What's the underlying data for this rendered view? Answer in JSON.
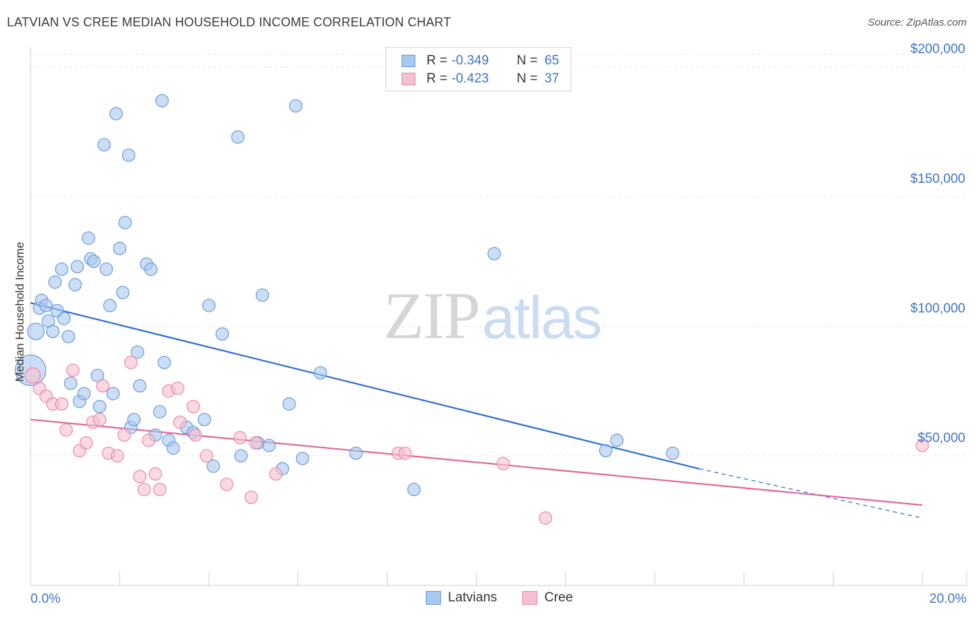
{
  "header": {
    "title": "LATVIAN VS CREE MEDIAN HOUSEHOLD INCOME CORRELATION CHART",
    "source": "Source: ZipAtlas.com"
  },
  "watermark": {
    "zip": "ZIP",
    "atlas": "atlas"
  },
  "legend": {
    "rows": [
      {
        "r_label": "R =",
        "r_value": "-0.349",
        "n_label": "N =",
        "n_value": "65"
      },
      {
        "r_label": "R =",
        "r_value": "-0.423",
        "n_label": "N =",
        "n_value": "37"
      }
    ],
    "bottom": [
      {
        "label": "Latvians"
      },
      {
        "label": "Cree"
      }
    ]
  },
  "colors": {
    "latvian_fill": "#a9c8f0",
    "latvian_stroke": "#6b9bd8",
    "latvian_line": "#2b6fd0",
    "cree_fill": "#f6c0d0",
    "cree_stroke": "#e68aa8",
    "cree_line": "#e0689a",
    "tick_label": "#3f74c8",
    "grid": "#e3e3e3"
  },
  "chart_data": {
    "type": "scatter",
    "title": "LATVIAN VS CREE MEDIAN HOUSEHOLD INCOME CORRELATION CHART",
    "xlabel": "",
    "ylabel": "Median Household Income",
    "xlim": [
      0,
      20
    ],
    "ylim": [
      0,
      205000
    ],
    "x_tick_labels": [
      {
        "value": 0,
        "label": "0.0%"
      },
      {
        "value": 20,
        "label": "20.0%"
      }
    ],
    "y_ticks": [
      {
        "value": 50000,
        "label": "$50,000"
      },
      {
        "value": 100000,
        "label": "$100,000"
      },
      {
        "value": 150000,
        "label": "$150,000"
      },
      {
        "value": 200000,
        "label": "$200,000"
      }
    ],
    "grid": "horizontal-dashed",
    "series": [
      {
        "name": "Latvians",
        "points": [
          [
            0.0,
            83000
          ],
          [
            0.12,
            98000
          ],
          [
            0.2,
            107000
          ],
          [
            0.25,
            110000
          ],
          [
            0.35,
            108000
          ],
          [
            0.4,
            102000
          ],
          [
            0.5,
            98000
          ],
          [
            0.55,
            117000
          ],
          [
            0.6,
            106000
          ],
          [
            0.7,
            122000
          ],
          [
            0.75,
            103000
          ],
          [
            0.85,
            96000
          ],
          [
            0.9,
            78000
          ],
          [
            1.0,
            116000
          ],
          [
            1.05,
            123000
          ],
          [
            1.1,
            71000
          ],
          [
            1.2,
            74000
          ],
          [
            1.3,
            134000
          ],
          [
            1.35,
            126000
          ],
          [
            1.42,
            125000
          ],
          [
            1.5,
            81000
          ],
          [
            1.55,
            69000
          ],
          [
            1.65,
            170000
          ],
          [
            1.7,
            122000
          ],
          [
            1.78,
            108000
          ],
          [
            1.85,
            74000
          ],
          [
            1.92,
            182000
          ],
          [
            2.0,
            130000
          ],
          [
            2.07,
            113000
          ],
          [
            2.12,
            140000
          ],
          [
            2.2,
            166000
          ],
          [
            2.25,
            61000
          ],
          [
            2.32,
            64000
          ],
          [
            2.4,
            90000
          ],
          [
            2.45,
            77000
          ],
          [
            2.6,
            124000
          ],
          [
            2.7,
            122000
          ],
          [
            2.8,
            58000
          ],
          [
            2.9,
            67000
          ],
          [
            2.95,
            187000
          ],
          [
            3.0,
            86000
          ],
          [
            3.1,
            56000
          ],
          [
            3.2,
            53000
          ],
          [
            3.5,
            61000
          ],
          [
            3.65,
            59000
          ],
          [
            3.9,
            64000
          ],
          [
            4.0,
            108000
          ],
          [
            4.1,
            46000
          ],
          [
            4.3,
            97000
          ],
          [
            4.65,
            173000
          ],
          [
            4.72,
            50000
          ],
          [
            5.1,
            55000
          ],
          [
            5.2,
            112000
          ],
          [
            5.35,
            54000
          ],
          [
            5.65,
            45000
          ],
          [
            5.8,
            70000
          ],
          [
            5.95,
            185000
          ],
          [
            6.1,
            49000
          ],
          [
            6.5,
            82000
          ],
          [
            7.3,
            51000
          ],
          [
            8.6,
            37000
          ],
          [
            10.4,
            128000
          ],
          [
            12.9,
            52000
          ],
          [
            13.15,
            56000
          ],
          [
            14.4,
            51000
          ]
        ]
      },
      {
        "name": "Cree",
        "points": [
          [
            0.05,
            81000
          ],
          [
            0.2,
            76000
          ],
          [
            0.35,
            73000
          ],
          [
            0.5,
            70000
          ],
          [
            0.7,
            70000
          ],
          [
            0.8,
            60000
          ],
          [
            0.95,
            83000
          ],
          [
            1.1,
            52000
          ],
          [
            1.25,
            55000
          ],
          [
            1.4,
            63000
          ],
          [
            1.55,
            64000
          ],
          [
            1.62,
            77000
          ],
          [
            1.75,
            51000
          ],
          [
            1.95,
            50000
          ],
          [
            2.1,
            58000
          ],
          [
            2.25,
            86000
          ],
          [
            2.45,
            42000
          ],
          [
            2.55,
            37000
          ],
          [
            2.65,
            56000
          ],
          [
            2.8,
            43000
          ],
          [
            2.9,
            37000
          ],
          [
            3.1,
            75000
          ],
          [
            3.3,
            76000
          ],
          [
            3.35,
            63000
          ],
          [
            3.65,
            69000
          ],
          [
            3.7,
            58000
          ],
          [
            3.95,
            50000
          ],
          [
            4.4,
            39000
          ],
          [
            4.7,
            57000
          ],
          [
            4.95,
            34000
          ],
          [
            5.05,
            55000
          ],
          [
            5.5,
            43000
          ],
          [
            8.25,
            51000
          ],
          [
            8.4,
            51000
          ],
          [
            10.6,
            47000
          ],
          [
            11.55,
            26000
          ],
          [
            20.0,
            54000
          ]
        ]
      }
    ],
    "trendlines": [
      {
        "series": "Latvians",
        "x": [
          0,
          15.0
        ],
        "y": [
          109000,
          45000
        ],
        "dashed_extension_to": [
          20,
          26000
        ]
      },
      {
        "series": "Cree",
        "x": [
          0,
          20
        ],
        "y": [
          64000,
          31000
        ]
      }
    ]
  }
}
